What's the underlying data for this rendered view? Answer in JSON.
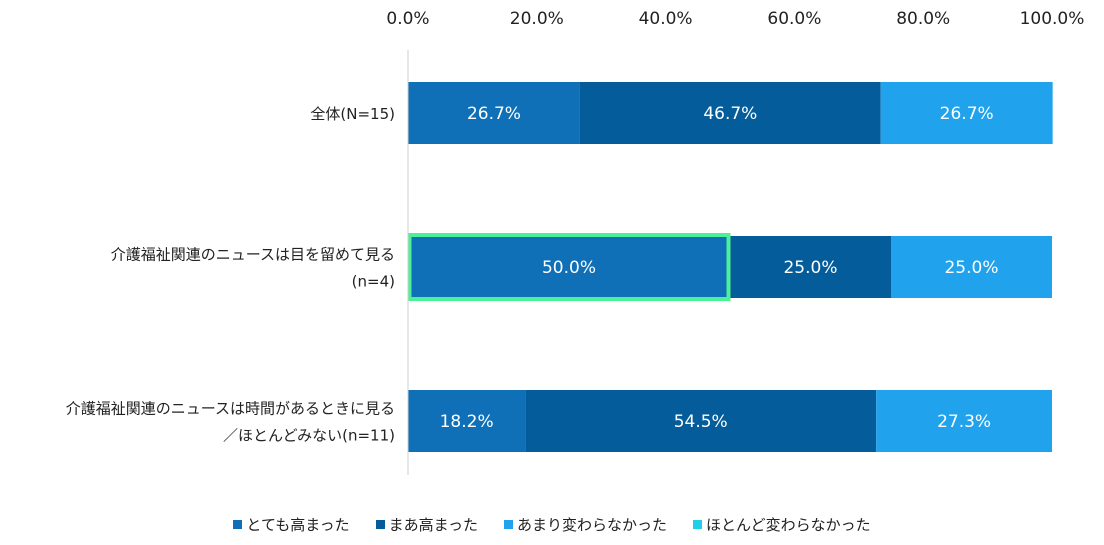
{
  "chart_data": {
    "type": "bar",
    "orientation": "horizontal",
    "stacked": true,
    "percent_axis": true,
    "xlim": [
      0,
      100
    ],
    "ticks": [
      "0.0%",
      "20.0%",
      "40.0%",
      "60.0%",
      "80.0%",
      "100.0%"
    ],
    "tick_values": [
      0,
      20,
      40,
      60,
      80,
      100
    ],
    "legend_position": "bottom",
    "categories": [
      {
        "lines": [
          "全体(N=15)"
        ]
      },
      {
        "lines": [
          "介護福祉関連のニュースは目を留めて見る",
          "(n=4)"
        ]
      },
      {
        "lines": [
          "介護福祉関連のニュースは時間があるときに見る",
          "／ほとんどみない(n=11)"
        ]
      }
    ],
    "series": [
      {
        "name": "とても高まった",
        "color": "#0f70b7",
        "values": [
          26.7,
          50.0,
          18.2
        ],
        "labels": [
          "26.7%",
          "50.0%",
          "18.2%"
        ]
      },
      {
        "name": "まあ高まった",
        "color": "#055c9a",
        "values": [
          46.7,
          25.0,
          54.5
        ],
        "labels": [
          "46.7%",
          "25.0%",
          "54.5%"
        ]
      },
      {
        "name": "あまり変わらなかった",
        "color": "#20a2ec",
        "values": [
          26.7,
          25.0,
          27.3
        ],
        "labels": [
          "26.7%",
          "25.0%",
          "27.3%"
        ]
      },
      {
        "name": "ほとんど変わらなかった",
        "color": "#1ed0e8",
        "values": [
          0,
          0,
          0
        ],
        "labels": [
          "",
          "",
          ""
        ]
      }
    ],
    "highlight": {
      "category_index": 1,
      "series_index": 0,
      "color": "#4cf096"
    }
  }
}
